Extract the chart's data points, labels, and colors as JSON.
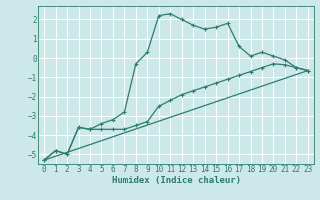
{
  "xlabel": "Humidex (Indice chaleur)",
  "bg_color": "#cce8e8",
  "grid_color": "#ffffff",
  "line_color": "#2d7d6e",
  "xlim": [
    -0.5,
    23.5
  ],
  "ylim": [
    -5.5,
    2.7
  ],
  "xticks": [
    0,
    1,
    2,
    3,
    4,
    5,
    6,
    7,
    8,
    9,
    10,
    11,
    12,
    13,
    14,
    15,
    16,
    17,
    18,
    19,
    20,
    21,
    22,
    23
  ],
  "yticks": [
    -5,
    -4,
    -3,
    -2,
    -1,
    0,
    1,
    2
  ],
  "line1_x": [
    0,
    1,
    2,
    3,
    4,
    5,
    6,
    7,
    8,
    9,
    10,
    11,
    12,
    13,
    14,
    15,
    16,
    17,
    18,
    19,
    20,
    21,
    22,
    23
  ],
  "line1_y": [
    -5.3,
    -4.8,
    -5.0,
    -3.6,
    -3.7,
    -3.4,
    -3.2,
    -2.8,
    -0.3,
    0.3,
    2.2,
    2.3,
    2.0,
    1.7,
    1.5,
    1.6,
    1.8,
    0.6,
    0.1,
    0.3,
    0.1,
    -0.1,
    -0.5,
    -0.65
  ],
  "line2_x": [
    0,
    1,
    2,
    3,
    4,
    5,
    6,
    7,
    8,
    9,
    10,
    11,
    12,
    13,
    14,
    15,
    16,
    17,
    18,
    19,
    20,
    21,
    22,
    23
  ],
  "line2_y": [
    -5.3,
    -4.8,
    -5.0,
    -3.6,
    -3.7,
    -3.7,
    -3.7,
    -3.7,
    -3.5,
    -3.3,
    -2.5,
    -2.2,
    -1.9,
    -1.7,
    -1.5,
    -1.3,
    -1.1,
    -0.9,
    -0.7,
    -0.5,
    -0.3,
    -0.35,
    -0.5,
    -0.65
  ],
  "line3_x": [
    0,
    23
  ],
  "line3_y": [
    -5.3,
    -0.65
  ]
}
